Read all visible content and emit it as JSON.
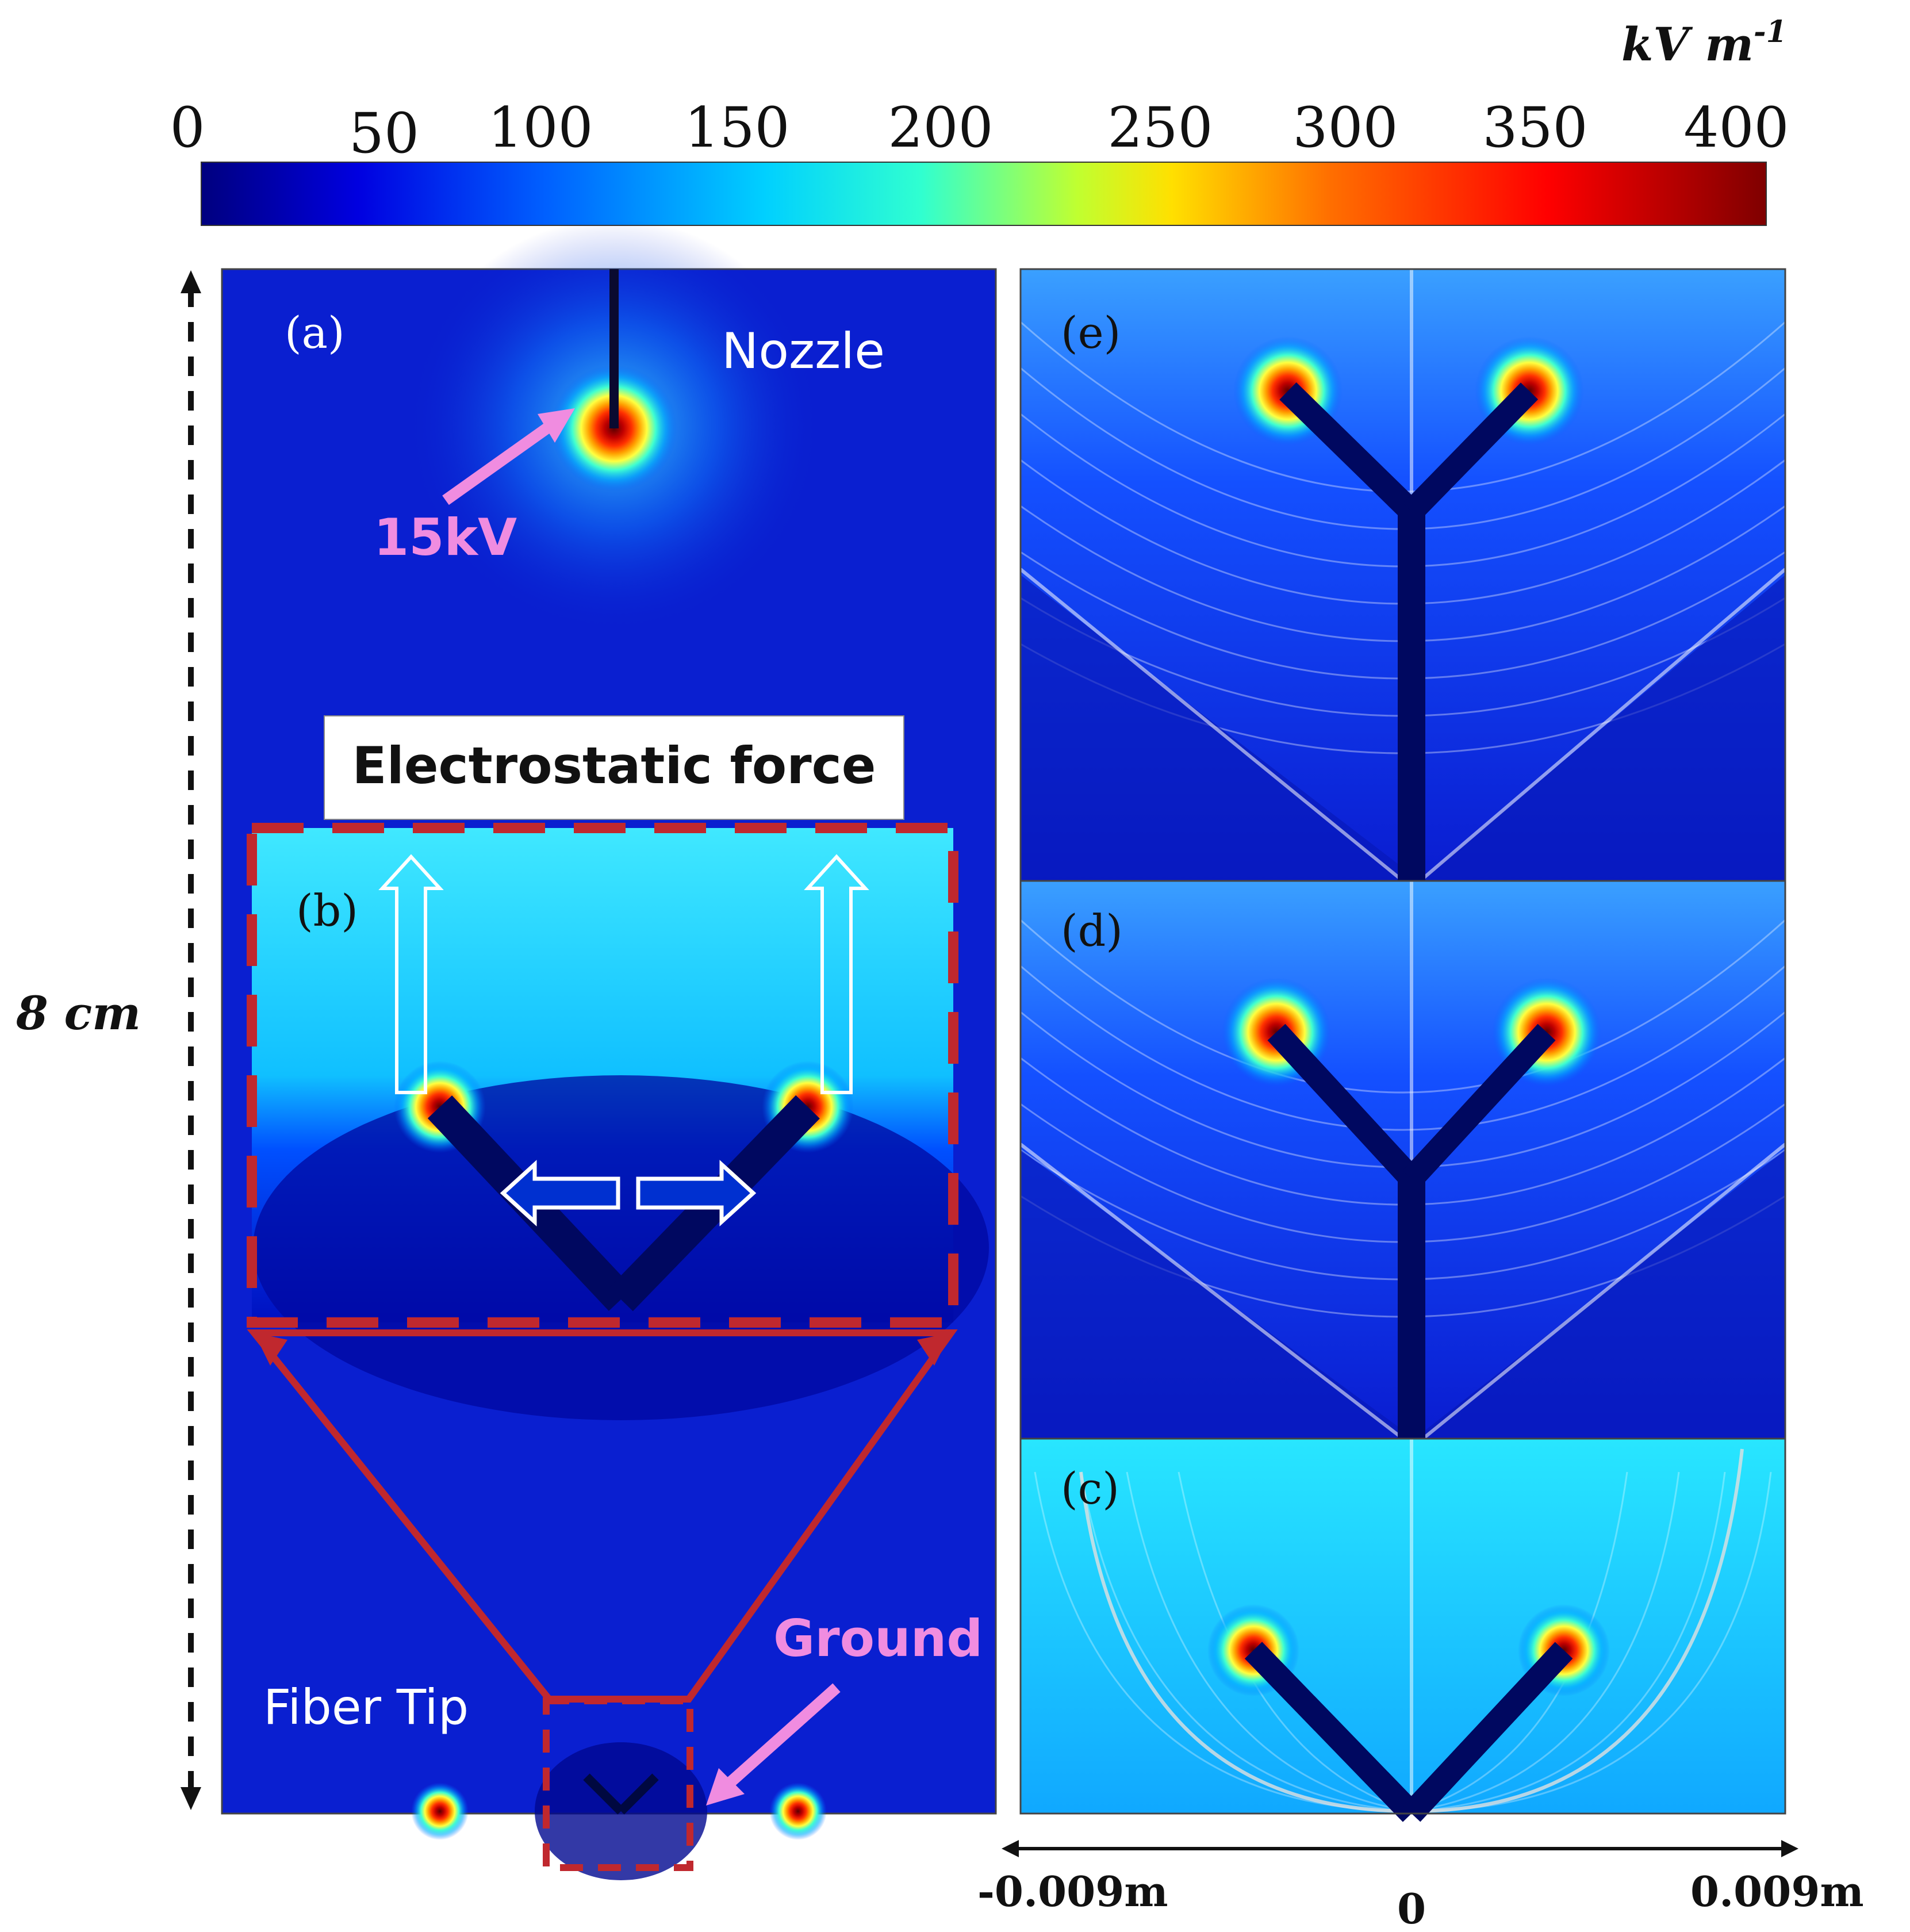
{
  "colorbar": {
    "unit": "kV m",
    "unit_exponent": "-1",
    "ticks": [
      "0",
      "50",
      "100",
      "150",
      "200",
      "250",
      "300",
      "350",
      "400"
    ],
    "stops": [
      "#00007f",
      "#0000e0",
      "#0060ff",
      "#00d0ff",
      "#30ffd0",
      "#c0ff30",
      "#ffe000",
      "#ff7000",
      "#ff0000",
      "#7f0000"
    ]
  },
  "left_scale": {
    "label": "8 cm"
  },
  "panel_a": {
    "label": "(a)",
    "nozzle": "Nozzle",
    "voltage": "15kV",
    "force_title": "Electrostatic force",
    "inset_label": "(b)",
    "ground": "Ground",
    "fiber_tip": "Fiber Tip"
  },
  "panels_right": [
    {
      "label": "(e)"
    },
    {
      "label": "(d)"
    },
    {
      "label": "(c)"
    }
  ],
  "x_scale": {
    "left": "-0.009m",
    "center": "0",
    "right": "0.009m"
  },
  "colors": {
    "field_dark": "#0a1fd0",
    "dash_red": "#c0282e",
    "pink": "#f08ce0",
    "white": "#ffffff"
  }
}
